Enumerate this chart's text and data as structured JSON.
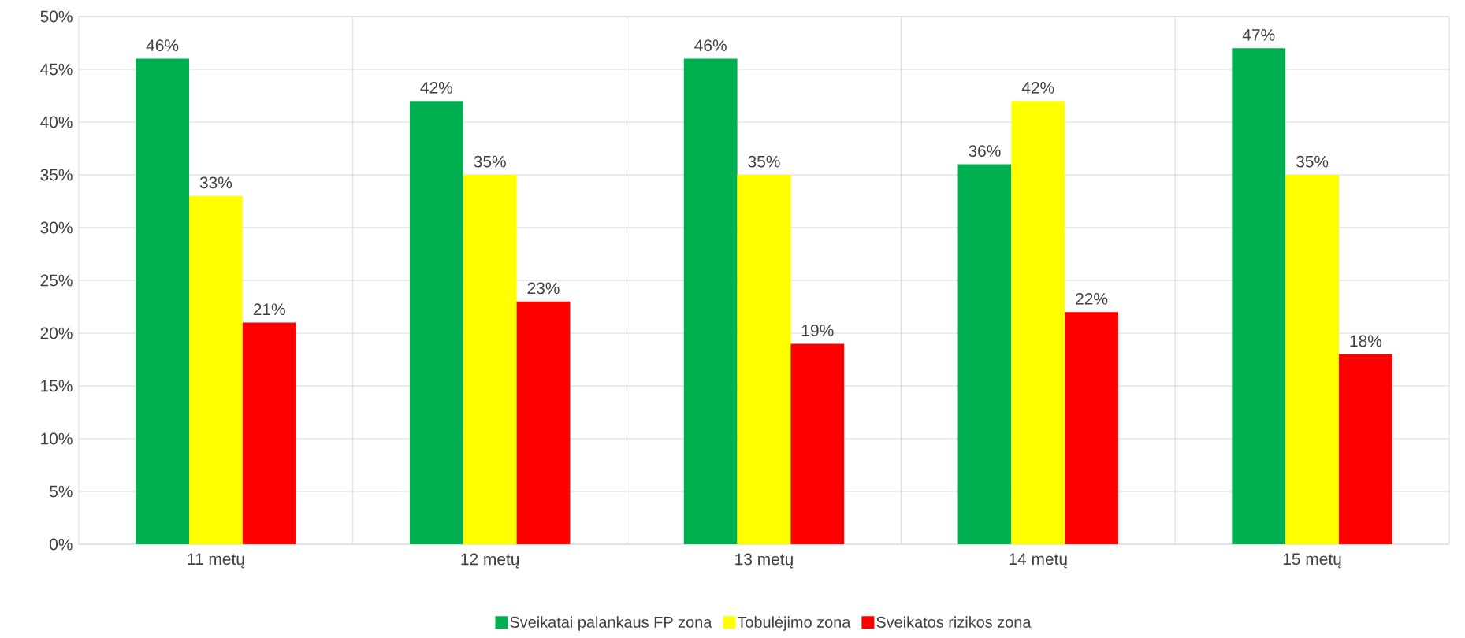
{
  "chart_data": {
    "type": "bar",
    "categories": [
      "11 metų",
      "12 metų",
      "13 metų",
      "14 metų",
      "15 metų"
    ],
    "series": [
      {
        "name": "Sveikatai palankaus FP zona",
        "color": "#00b050",
        "values": [
          46,
          42,
          46,
          36,
          47
        ],
        "value_labels": [
          "46%",
          "42%",
          "46%",
          "36%",
          "47%"
        ]
      },
      {
        "name": "Tobulėjimo zona",
        "color": "#ffff00",
        "values": [
          33,
          35,
          35,
          42,
          35
        ],
        "value_labels": [
          "33%",
          "35%",
          "35%",
          "42%",
          "35%"
        ]
      },
      {
        "name": "Sveikatos rizikos zona",
        "color": "#ff0000",
        "values": [
          21,
          23,
          19,
          22,
          18
        ],
        "value_labels": [
          "21%",
          "23%",
          "19%",
          "22%",
          "18%"
        ]
      }
    ],
    "ylim": [
      0,
      50
    ],
    "yticks": [
      {
        "value": 0,
        "label": "0%"
      },
      {
        "value": 5,
        "label": "5%"
      },
      {
        "value": 10,
        "label": "10%"
      },
      {
        "value": 15,
        "label": "15%"
      },
      {
        "value": 20,
        "label": "20%"
      },
      {
        "value": 25,
        "label": "25%"
      },
      {
        "value": 30,
        "label": "30%"
      },
      {
        "value": 35,
        "label": "35%"
      },
      {
        "value": 40,
        "label": "40%"
      },
      {
        "value": 45,
        "label": "45%"
      },
      {
        "value": 50,
        "label": "50%"
      }
    ],
    "grid": true,
    "legend": "bottom"
  }
}
